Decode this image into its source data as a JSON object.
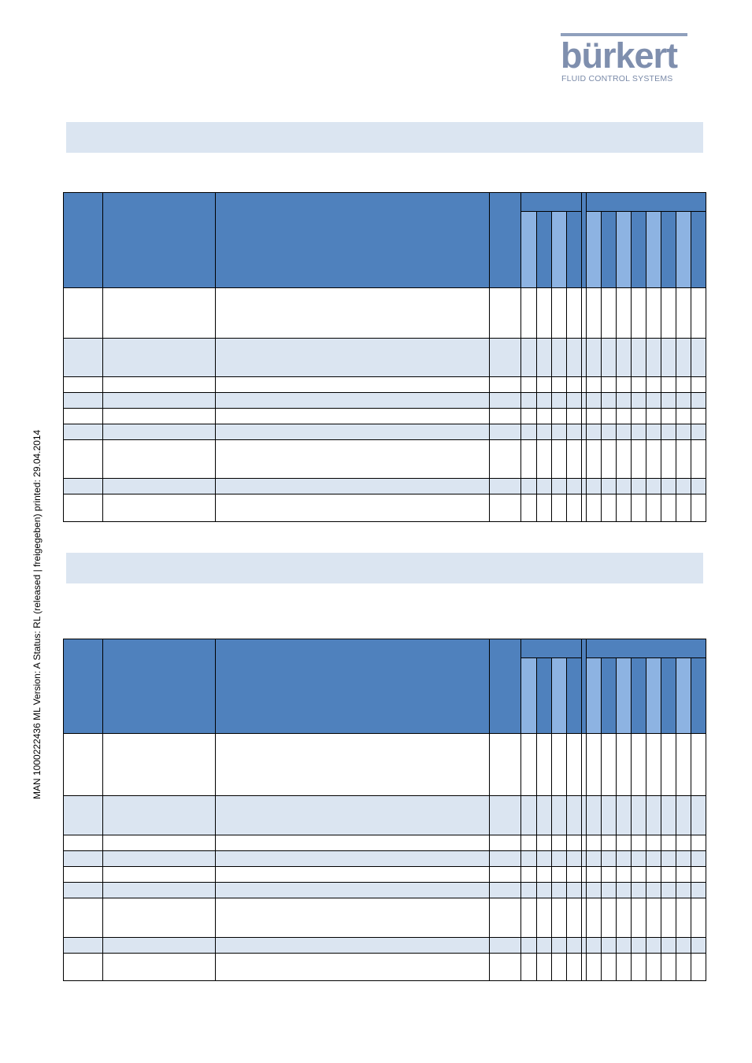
{
  "logo": {
    "wordmark": "bürkert",
    "tagline": "FLUID CONTROL SYSTEMS"
  },
  "side_text": "MAN  1000222436  ML  Version: A  Status: RL (released | freigegeben)  printed: 29.04.2014",
  "section1": {
    "title": ""
  },
  "section2": {
    "title": ""
  },
  "colors": {
    "header_blue": "#4f81bd",
    "light_blue": "#8db3e2",
    "row_shade": "#dbe5f1",
    "logo_grey": "#7f8fae"
  }
}
